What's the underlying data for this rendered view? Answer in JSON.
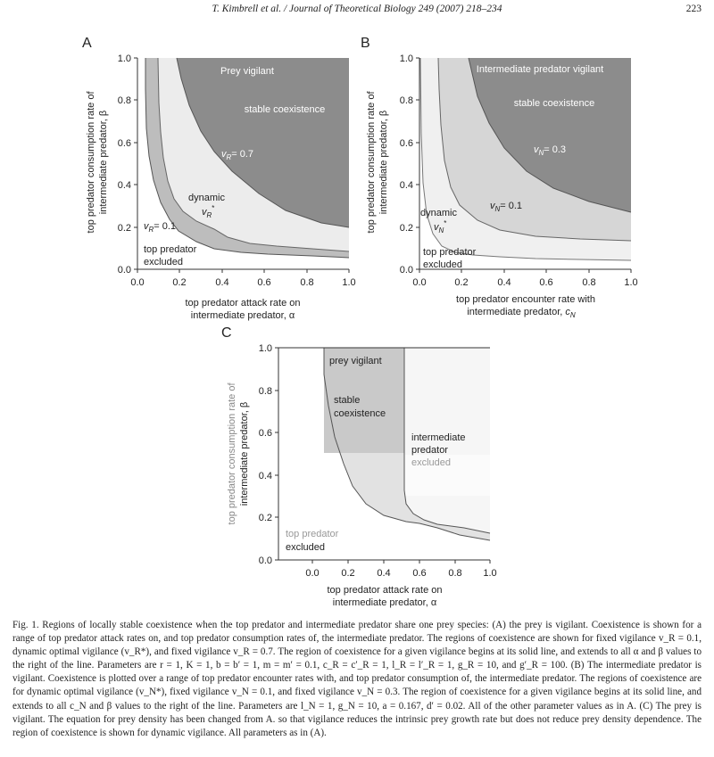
{
  "header": {
    "journal": "T. Kimbrell et al. / Journal of Theoretical Biology 249 (2007) 218–234",
    "page_number": "223"
  },
  "panels": {
    "A": {
      "letter": "A",
      "ylabel_line1": "top predator consumption rate of",
      "ylabel_line2": "intermediate predator, β",
      "xlabel_line1": "top predator attack rate on",
      "xlabel_line2": "intermediate predator, α",
      "ticks_x": [
        "0.0",
        "0.2",
        "0.4",
        "0.6",
        "0.8",
        "1.0"
      ],
      "ticks_y": [
        "0.0",
        "0.2",
        "0.4",
        "0.6",
        "0.8",
        "1.0"
      ],
      "labels": {
        "prey_vigilant": "Prey vigilant",
        "stable_coexistence": "stable coexistence",
        "v_high": "= 0.7",
        "dynamic": "dynamic",
        "v_low": "= 0.1",
        "excluded_1": "top predator",
        "excluded_2": "excluded"
      }
    },
    "B": {
      "letter": "B",
      "ylabel_line1": "top predator consumption rate of",
      "ylabel_line2": "intermediate predator, β",
      "xlabel_line1": "top predator encounter rate with",
      "xlabel_line2": "intermediate predator,",
      "ticks_x": [
        "0.0",
        "0.2",
        "0.4",
        "0.6",
        "0.8",
        "1.0"
      ],
      "ticks_y": [
        "0.0",
        "0.2",
        "0.4",
        "0.6",
        "0.8",
        "1.0"
      ],
      "labels": {
        "title": "Intermediate predator vigilant",
        "stable_coexistence": "stable coexistence",
        "v_high": "= 0.3",
        "v_low": "= 0.1",
        "dynamic": "dynamic",
        "excluded_1": "top predator",
        "excluded_2": "excluded"
      }
    },
    "C": {
      "letter": "C",
      "ylabel_line1": "top predator consumption rate of",
      "ylabel_line2": "intermediate predator, β",
      "xlabel_line1": "top predator attack rate on",
      "xlabel_line2": "intermediate predator, α",
      "ticks_x": [
        "0.0",
        "0.2",
        "0.4",
        "0.6",
        "0.8",
        "1.0"
      ],
      "ticks_y": [
        "0.0",
        "0.2",
        "0.4",
        "0.6",
        "0.8",
        "1.0"
      ],
      "labels": {
        "prey_vigilant": "prey vigilant",
        "stable_1": "stable",
        "stable_2": "coexistence",
        "int_1": "intermediate",
        "int_2": "predator",
        "int_3": "excluded",
        "excluded_1": "top predator",
        "excluded_2": "excluded"
      }
    }
  },
  "caption": "Fig. 1. Regions of locally stable coexistence when the top predator and intermediate predator share one prey species: (A) the prey is vigilant. Coexistence is shown for a range of top predator attack rates on, and top predator consumption rates of, the intermediate predator. The regions of coexistence are shown for fixed vigilance v_R = 0.1, dynamic optimal vigilance (v_R*), and fixed vigilance v_R = 0.7. The region of coexistence for a given vigilance begins at its solid line, and extends to all α and β values to the right of the line. Parameters are r = 1, K = 1, b = b′ = 1, m = m′ = 0.1, c_R = c′_R = 1, l_R = l′_R = 1, g_R = 10, and g′_R = 100. (B) The intermediate predator is vigilant. Coexistence is plotted over a range of top predator encounter rates with, and top predator consumption of, the intermediate predator. The regions of coexistence are for dynamic optimal vigilance (v_N*), fixed vigilance v_N = 0.1, and fixed vigilance v_N = 0.3. The region of coexistence for a given vigilance begins at its solid line, and extends to all c_N and β values to the right of the line. Parameters are l_N = 1, g_N = 10, a = 0.167, d′ = 0.02. All of the other parameter values as in A. (C) The prey is vigilant. The equation for prey density has been changed from A. so that vigilance reduces the intrinsic prey growth rate but does not reduce prey density dependence. The region of coexistence is shown for dynamic vigilance. All parameters as in (A)."
}
